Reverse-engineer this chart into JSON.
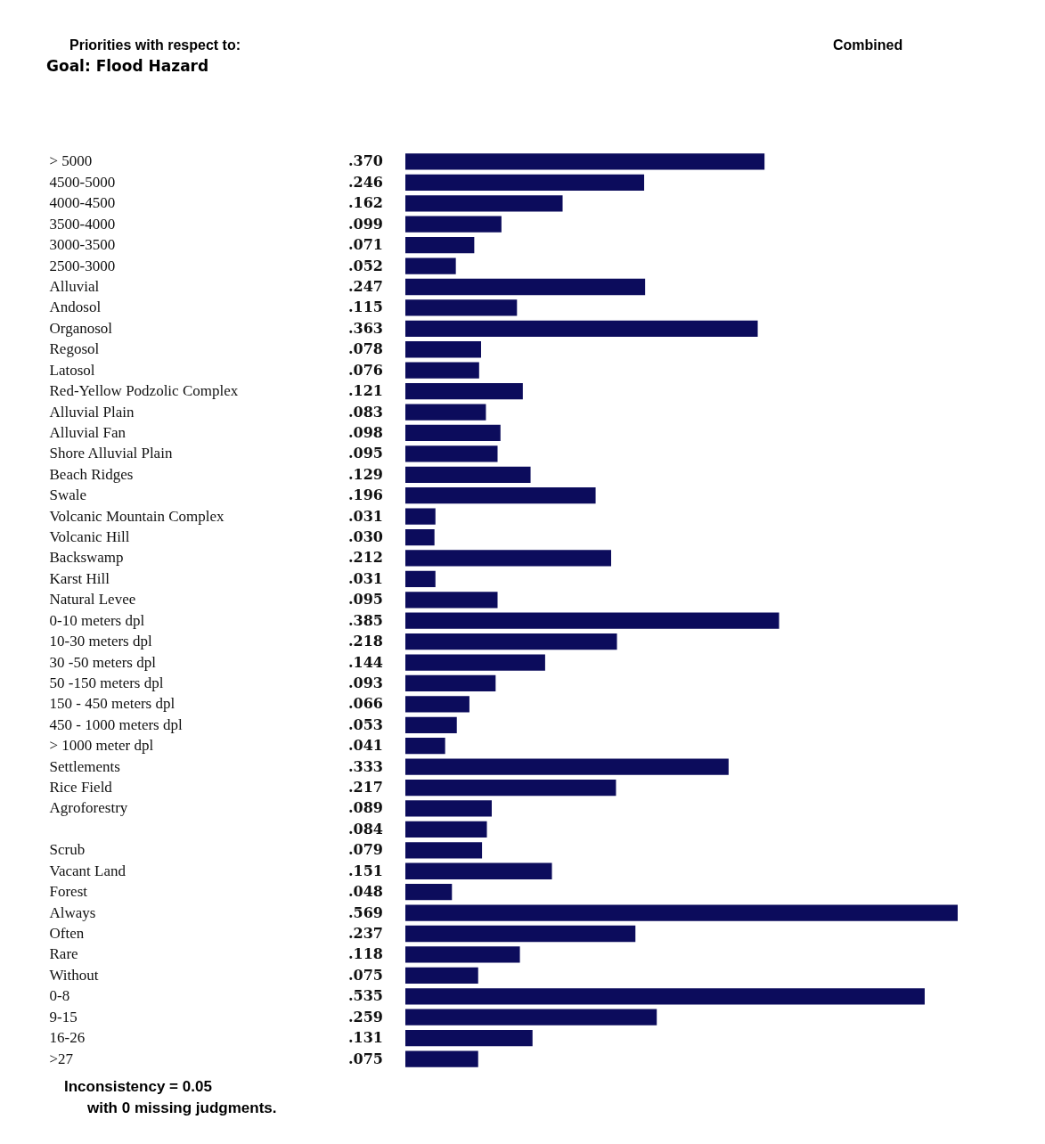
{
  "chart_data": {
    "type": "bar",
    "orientation": "horizontal",
    "title": "Priorities with respect to:",
    "subtitle": "Goal:  Flood Hazard",
    "annotations": [
      "Combined",
      "Inconsistency = 0.05",
      "with 0  missing judgments."
    ],
    "categories": [
      "> 5000",
      "4500-5000",
      "4000-4500",
      "3500-4000",
      "3000-3500",
      "2500-3000",
      "Alluvial",
      "Andosol",
      "Organosol",
      "Regosol",
      "Latosol",
      "Red-Yellow Podzolic Complex",
      "Alluvial Plain",
      "Alluvial Fan",
      "Shore Alluvial Plain",
      "Beach Ridges",
      "Swale",
      "Volcanic Mountain Complex",
      "Volcanic Hill",
      "Backswamp",
      "Karst Hill",
      "Natural Levee",
      "0-10 meters dpl",
      "10-30 meters dpl",
      "30 -50 meters dpl",
      "50 -150 meters dpl",
      "150 - 450 meters dpl",
      "450 - 1000 meters dpl",
      "> 1000 meter dpl",
      "Settlements",
      "Rice Field",
      "Agroforestry",
      null,
      "Scrub",
      "Vacant Land",
      "Forest",
      "Always",
      "Often",
      "Rare",
      "Without",
      "0-8",
      "9-15",
      "16-26",
      ">27"
    ],
    "values": [
      0.37,
      0.246,
      0.162,
      0.099,
      0.071,
      0.052,
      0.247,
      0.115,
      0.363,
      0.078,
      0.076,
      0.121,
      0.083,
      0.098,
      0.095,
      0.129,
      0.196,
      0.031,
      0.03,
      0.212,
      0.031,
      0.095,
      0.385,
      0.218,
      0.144,
      0.093,
      0.066,
      0.053,
      0.041,
      0.333,
      0.217,
      0.089,
      0.084,
      0.079,
      0.151,
      0.048,
      0.569,
      0.237,
      0.118,
      0.075,
      0.535,
      0.259,
      0.131,
      0.075
    ],
    "value_labels": [
      ".370",
      ".246",
      ".162",
      ".099",
      ".071",
      ".052",
      ".247",
      ".115",
      ".363",
      ".078",
      ".076",
      ".121",
      ".083",
      ".098",
      ".095",
      ".129",
      ".196",
      ".031",
      ".030",
      ".212",
      ".031",
      ".095",
      ".385",
      ".218",
      ".144",
      ".093",
      ".066",
      ".053",
      ".041",
      ".333",
      ".217",
      ".089",
      ".084",
      ".079",
      ".151",
      ".048",
      ".569",
      ".237",
      ".118",
      ".075",
      ".535",
      ".259",
      ".131",
      ".075"
    ],
    "color": "#0c0c5c"
  }
}
